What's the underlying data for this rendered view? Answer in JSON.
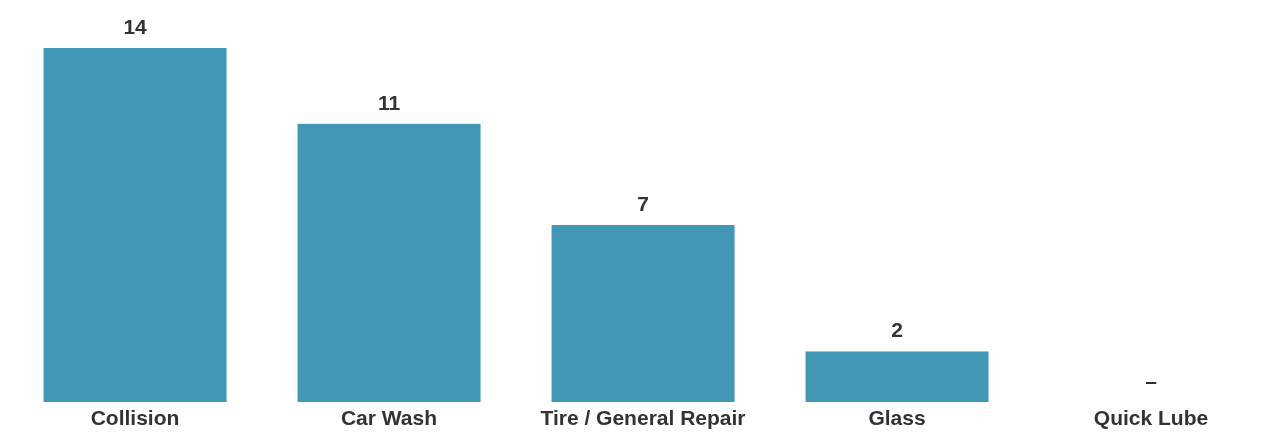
{
  "chart_data": {
    "type": "bar",
    "categories": [
      "Collision",
      "Car Wash",
      "Tire / General Repair",
      "Glass",
      "Quick Lube"
    ],
    "values": [
      14,
      11,
      7,
      2,
      0
    ],
    "value_labels": [
      "14",
      "11",
      "7",
      "2",
      "–"
    ],
    "color": "#4397b6",
    "tick_labels": "x",
    "grid": false,
    "legend": false
  }
}
